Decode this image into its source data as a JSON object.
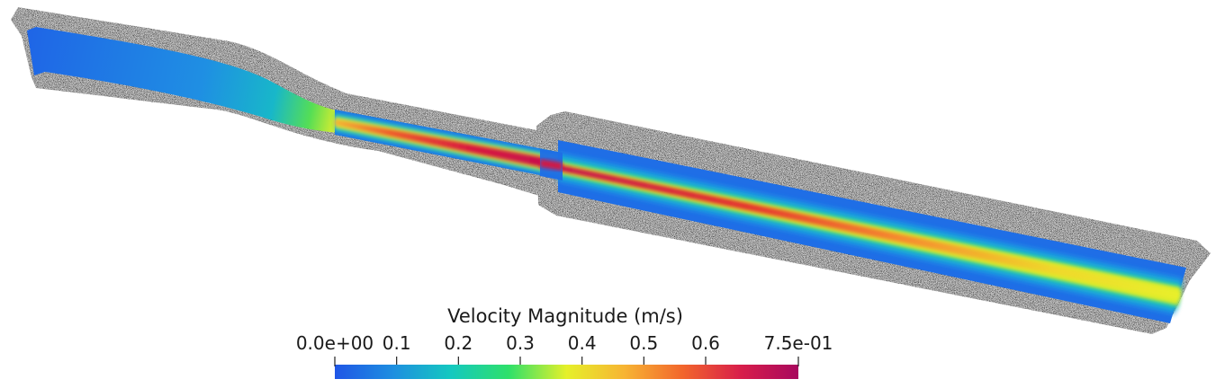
{
  "colorbar": {
    "title": "Velocity Magnitude (m/s)",
    "min_label": "0.0e+00",
    "max_label": "7.5e-01",
    "min": 0.0,
    "max": 0.75,
    "ticks": [
      {
        "value": 0.1,
        "label": "0.1"
      },
      {
        "value": 0.2,
        "label": "0.2"
      },
      {
        "value": 0.3,
        "label": "0.3"
      },
      {
        "value": 0.4,
        "label": "0.4"
      },
      {
        "value": 0.5,
        "label": "0.5"
      },
      {
        "value": 0.6,
        "label": "0.6"
      }
    ],
    "colormap": [
      "#1f56e6",
      "#1e8ee0",
      "#14c8c0",
      "#2ee06a",
      "#e6f02a",
      "#f7b433",
      "#f2662c",
      "#d81e4a",
      "#a8085e"
    ]
  },
  "colors": {
    "wall_dark": "#4b4b4b",
    "wall_light": "#d9d9d9",
    "fluid_slow": "#1f6ee8",
    "fluid_peak": "#d3124d"
  }
}
